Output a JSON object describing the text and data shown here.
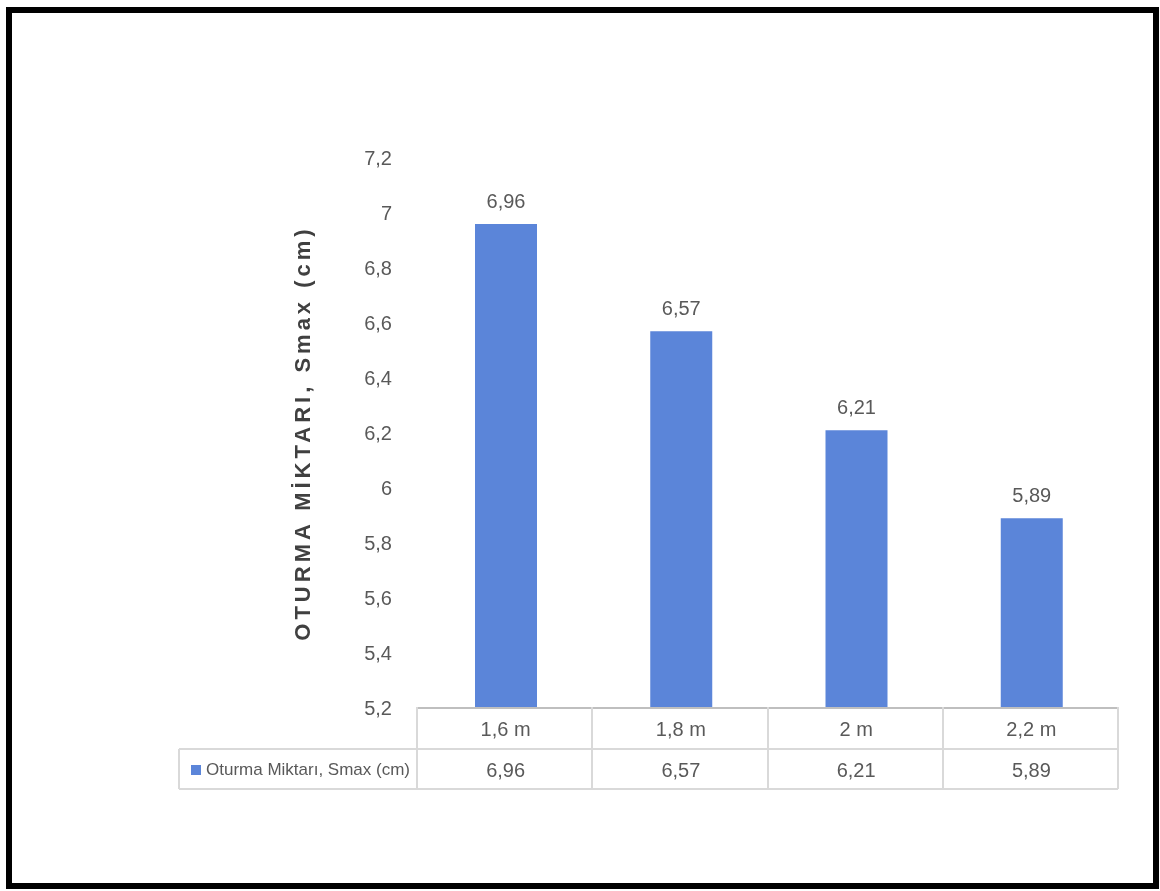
{
  "chart_data": {
    "type": "bar",
    "ylabel": "OTURMA MİKTARI, Smax (cm)",
    "categories": [
      "1,6 m",
      "1,8 m",
      "2 m",
      "2,2 m"
    ],
    "series": [
      {
        "name": "Oturma Miktarı, Smax (cm)",
        "color": "#5b85d9",
        "values": [
          6.96,
          6.57,
          6.21,
          5.89
        ],
        "value_labels": [
          "6,96",
          "6,57",
          "6,21",
          "5,89"
        ]
      }
    ],
    "ylim": [
      5.2,
      7.2
    ],
    "yticks": [
      {
        "value": 5.2,
        "label": "5,2"
      },
      {
        "value": 5.4,
        "label": "5,4"
      },
      {
        "value": 5.6,
        "label": "5,6"
      },
      {
        "value": 5.8,
        "label": "5,8"
      },
      {
        "value": 6,
        "label": "6"
      },
      {
        "value": 6.2,
        "label": "6,2"
      },
      {
        "value": 6.4,
        "label": "6,4"
      },
      {
        "value": 6.6,
        "label": "6,6"
      },
      {
        "value": 6.8,
        "label": "6,8"
      },
      {
        "value": 7,
        "label": "7"
      },
      {
        "value": 7.2,
        "label": "7,2"
      }
    ],
    "legend": "bottom left"
  }
}
